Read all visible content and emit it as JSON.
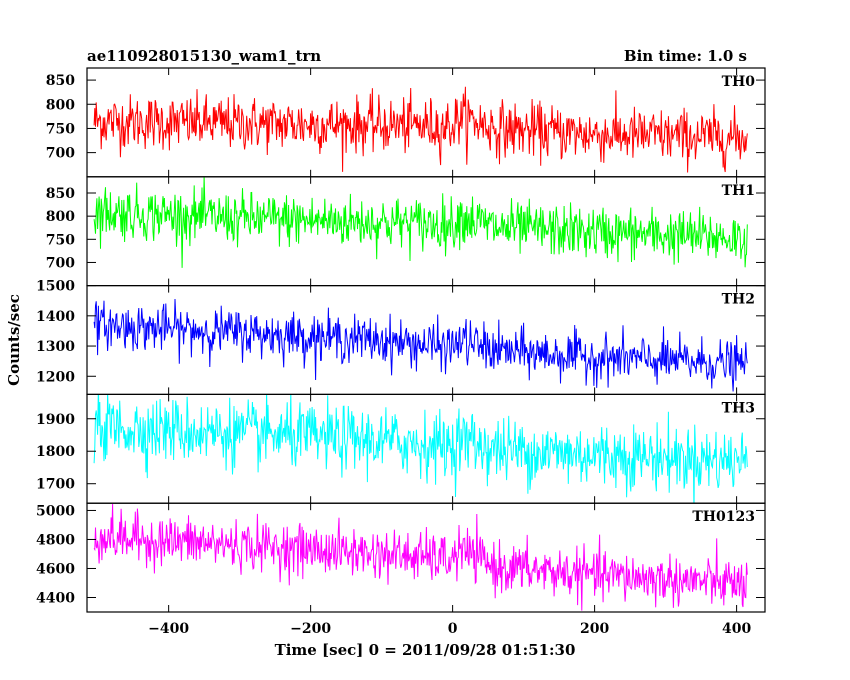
{
  "header": {
    "title": "ae110928015130_wam1_trn",
    "bin_time": "Bin time: 1.0 s"
  },
  "chart_data": {
    "type": "line",
    "title": "ae110928015130_wam1_trn",
    "xlabel": "Time [sec] 0 = 2011/09/28 01:51:30",
    "ylabel": "Counts/sec",
    "xlim": [
      -515,
      440
    ],
    "x_ticks": [
      -400,
      -200,
      0,
      200,
      400
    ],
    "x_range": [
      -505,
      415
    ],
    "grid": false,
    "series": [
      {
        "name": "TH0",
        "color": "#ff0000",
        "ylim": [
          650,
          875
        ],
        "y_ticks": [
          700,
          750,
          800,
          850
        ],
        "trend": [
          [
            -505,
            765
          ],
          [
            -300,
            760
          ],
          [
            0,
            755
          ],
          [
            10,
            775
          ],
          [
            60,
            750
          ],
          [
            200,
            738
          ],
          [
            415,
            730
          ]
        ],
        "noise": 28
      },
      {
        "name": "TH1",
        "color": "#00ff00",
        "ylim": [
          650,
          885
        ],
        "y_ticks": [
          700,
          750,
          800,
          850
        ],
        "trend": [
          [
            -505,
            810
          ],
          [
            -300,
            795
          ],
          [
            0,
            782
          ],
          [
            10,
            800
          ],
          [
            60,
            775
          ],
          [
            200,
            765
          ],
          [
            415,
            752
          ]
        ],
        "noise": 28
      },
      {
        "name": "TH2",
        "color": "#0000ff",
        "ylim": [
          1140,
          1500
        ],
        "y_ticks": [
          1200,
          1300,
          1400,
          1500
        ],
        "trend": [
          [
            -505,
            1370
          ],
          [
            -300,
            1345
          ],
          [
            -100,
            1318
          ],
          [
            0,
            1295
          ],
          [
            10,
            1320
          ],
          [
            60,
            1285
          ],
          [
            200,
            1262
          ],
          [
            415,
            1240
          ]
        ],
        "noise": 38
      },
      {
        "name": "TH3",
        "color": "#00ffff",
        "ylim": [
          1640,
          1975
        ],
        "y_ticks": [
          1700,
          1800,
          1900
        ],
        "trend": [
          [
            -505,
            1875
          ],
          [
            -300,
            1855
          ],
          [
            -100,
            1832
          ],
          [
            0,
            1815
          ],
          [
            10,
            1840
          ],
          [
            60,
            1805
          ],
          [
            200,
            1790
          ],
          [
            415,
            1770
          ]
        ],
        "noise": 50
      },
      {
        "name": "TH0123",
        "color": "#ff00ff",
        "ylim": [
          4300,
          5050
        ],
        "y_ticks": [
          4400,
          4600,
          4800,
          5000
        ],
        "trend": [
          [
            -505,
            4820
          ],
          [
            -300,
            4760
          ],
          [
            -100,
            4700
          ],
          [
            0,
            4660
          ],
          [
            10,
            4730
          ],
          [
            60,
            4610
          ],
          [
            200,
            4555
          ],
          [
            415,
            4490
          ]
        ],
        "noise": 85
      }
    ]
  }
}
